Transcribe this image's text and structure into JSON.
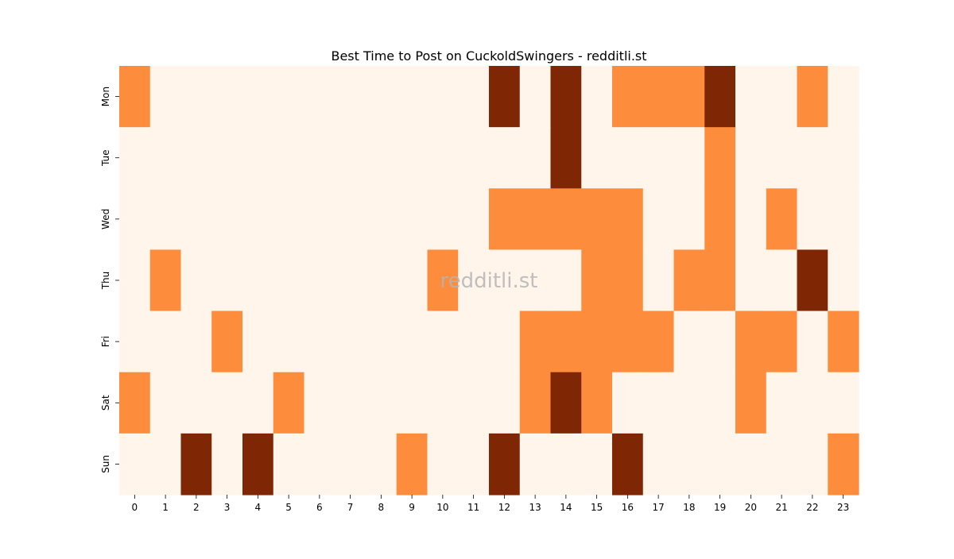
{
  "chart_data": {
    "type": "heatmap",
    "title": "Best Time to Post on CuckoldSwingers - redditli.st",
    "watermark": "redditli.st",
    "xlabel": "",
    "ylabel": "",
    "x_labels": [
      "0",
      "1",
      "2",
      "3",
      "4",
      "5",
      "6",
      "7",
      "8",
      "9",
      "10",
      "11",
      "12",
      "13",
      "14",
      "15",
      "16",
      "17",
      "18",
      "19",
      "20",
      "21",
      "22",
      "23"
    ],
    "y_labels": [
      "Mon",
      "Tue",
      "Wed",
      "Thu",
      "Fri",
      "Sat",
      "Sun"
    ],
    "values": [
      [
        1,
        0,
        0,
        0,
        0,
        0,
        0,
        0,
        0,
        0,
        0,
        0,
        2,
        0,
        2,
        0,
        1,
        1,
        1,
        2,
        0,
        0,
        1,
        0
      ],
      [
        0,
        0,
        0,
        0,
        0,
        0,
        0,
        0,
        0,
        0,
        0,
        0,
        0,
        0,
        2,
        0,
        0,
        0,
        0,
        1,
        0,
        0,
        0,
        0
      ],
      [
        0,
        0,
        0,
        0,
        0,
        0,
        0,
        0,
        0,
        0,
        0,
        0,
        1,
        1,
        1,
        1,
        1,
        0,
        0,
        1,
        0,
        1,
        0,
        0
      ],
      [
        0,
        1,
        0,
        0,
        0,
        0,
        0,
        0,
        0,
        0,
        1,
        0,
        0,
        0,
        0,
        1,
        1,
        0,
        1,
        1,
        0,
        0,
        2,
        0
      ],
      [
        0,
        0,
        0,
        1,
        0,
        0,
        0,
        0,
        0,
        0,
        0,
        0,
        0,
        1,
        1,
        1,
        1,
        1,
        0,
        0,
        1,
        1,
        0,
        1
      ],
      [
        1,
        0,
        0,
        0,
        0,
        1,
        0,
        0,
        0,
        0,
        0,
        0,
        0,
        1,
        2,
        1,
        0,
        0,
        0,
        0,
        1,
        0,
        0,
        0
      ],
      [
        0,
        0,
        2,
        0,
        2,
        0,
        0,
        0,
        0,
        1,
        0,
        0,
        2,
        0,
        0,
        0,
        2,
        0,
        0,
        0,
        0,
        0,
        0,
        1
      ]
    ],
    "color_levels": {
      "0": "#fff5eb",
      "1": "#fd8d3c",
      "2": "#7f2704"
    },
    "colorbar": false,
    "grid": false
  }
}
